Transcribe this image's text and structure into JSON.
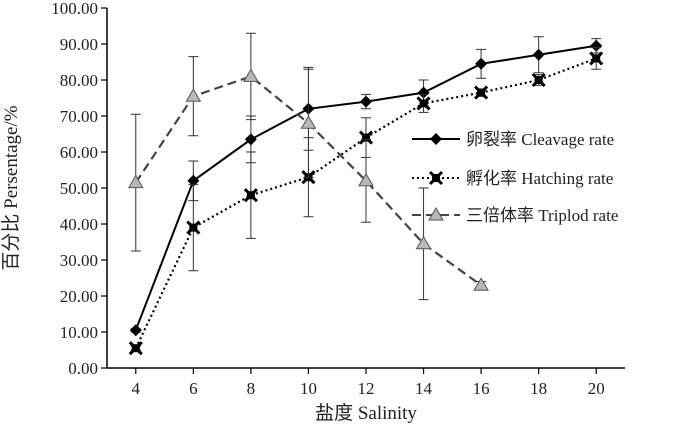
{
  "chart_data": {
    "type": "line",
    "xlabel": "盐度 Salinity",
    "ylabel": "百分比 Persentage/%",
    "x": [
      4,
      6,
      8,
      10,
      12,
      14,
      16,
      18,
      20
    ],
    "x_tick_labels": [
      "4",
      "6",
      "8",
      "10",
      "12",
      "14",
      "16",
      "18",
      "20"
    ],
    "ylim": [
      0,
      100
    ],
    "y_tick_labels": [
      "0.00",
      "10.00",
      "20.00",
      "30.00",
      "40.00",
      "50.00",
      "60.00",
      "70.00",
      "80.00",
      "90.00",
      "100.00"
    ],
    "grid": false,
    "legend_position": "right",
    "series": [
      {
        "name": "卵裂率 Cleavage rate",
        "line_style": "solid",
        "marker": "diamond",
        "color": "#000000",
        "x": [
          4,
          6,
          8,
          10,
          12,
          14,
          16,
          18,
          20
        ],
        "values": [
          10.5,
          52.0,
          63.5,
          72.0,
          74.0,
          76.5,
          84.5,
          87.0,
          89.5
        ],
        "errors": [
          0.5,
          5.5,
          6.5,
          11.5,
          2.0,
          3.5,
          4.0,
          5.0,
          2.0
        ]
      },
      {
        "name": "孵化率 Hatching rate",
        "line_style": "dotted",
        "marker": "x-square",
        "color": "#000000",
        "x": [
          4,
          6,
          8,
          10,
          12,
          14,
          16,
          18,
          20
        ],
        "values": [
          5.5,
          39.0,
          48.0,
          53.0,
          64.0,
          73.5,
          76.5,
          80.0,
          86.0
        ],
        "errors": [
          0.5,
          12.0,
          12.0,
          11.0,
          5.5,
          2.5,
          1.0,
          1.5,
          3.0
        ]
      },
      {
        "name": "三倍体率 Triplod rate",
        "line_style": "dashed",
        "marker": "triangle",
        "color": "#444444",
        "x": [
          4,
          6,
          8,
          10,
          12,
          14,
          16
        ],
        "values": [
          51.5,
          75.5,
          81.0,
          68.0,
          52.0,
          34.5,
          23.0
        ],
        "errors": [
          19.0,
          11.0,
          12.0,
          15.0,
          11.5,
          15.5,
          1.0
        ]
      }
    ]
  }
}
